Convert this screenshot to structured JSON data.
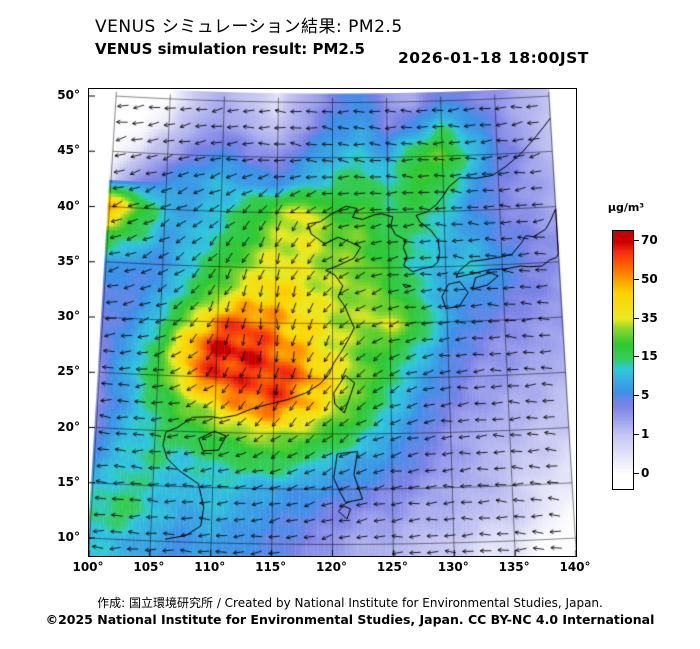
{
  "header": {
    "title_ja": "VENUS シミュレーション結果: PM2.5",
    "title_en": "VENUS simulation result: PM2.5",
    "datetime": "2026-01-18 18:00JST"
  },
  "footer": {
    "credit": "作成:  国立環境研究所 / Created by National Institute for Environmental Studies, Japan.",
    "license": "©2025 National Institute for Environmental Studies, Japan. CC BY-NC 4.0 International"
  },
  "chart_data": {
    "type": "heatmap",
    "title": "VENUS simulation result: PM2.5",
    "variable": "PM2.5",
    "units": "µg/m³",
    "datetime": "2026-01-18 18:00JST",
    "lon_range": [
      100,
      140
    ],
    "lat_range": [
      10,
      50
    ],
    "lon_ticks": [
      "100°",
      "105°",
      "110°",
      "115°",
      "120°",
      "125°",
      "130°",
      "135°",
      "140°"
    ],
    "lat_ticks": [
      "50°",
      "45°",
      "40°",
      "35°",
      "30°",
      "25°",
      "20°",
      "15°",
      "10°"
    ],
    "colorbar": {
      "label": "µg/m³",
      "tick_values": [
        70,
        50,
        35,
        15,
        5,
        1,
        0
      ]
    },
    "color_stops": [
      [
        0,
        "#ffffff"
      ],
      [
        1,
        "#c6c6f2"
      ],
      [
        4,
        "#7b82e6"
      ],
      [
        6,
        "#3f8fe8"
      ],
      [
        12,
        "#2fc8dc"
      ],
      [
        15,
        "#35cc5a"
      ],
      [
        22,
        "#2fc832"
      ],
      [
        30,
        "#8cd62c"
      ],
      [
        35,
        "#e8ea24"
      ],
      [
        45,
        "#ffd400"
      ],
      [
        50,
        "#ffa000"
      ],
      [
        58,
        "#ff5f00"
      ],
      [
        65,
        "#f32c10"
      ],
      [
        70,
        "#c80000"
      ]
    ],
    "grid": {
      "lon_start": 100,
      "lon_step": 2.5,
      "lat_start": 50,
      "lat_step": -2.5,
      "values": [
        [
          null,
          null,
          null,
          1,
          2,
          1,
          0.5,
          2,
          4,
          6,
          3,
          2,
          5,
          4,
          3,
          2,
          1
        ],
        [
          null,
          null,
          0.5,
          2,
          3,
          2,
          1,
          3,
          6,
          8,
          4,
          6,
          14,
          8,
          4,
          2,
          1
        ],
        [
          null,
          0.5,
          2,
          4,
          6,
          4,
          3,
          6,
          10,
          12,
          8,
          20,
          26,
          12,
          5,
          3,
          1
        ],
        [
          0.5,
          3,
          6,
          8,
          10,
          8,
          6,
          10,
          14,
          18,
          12,
          22,
          18,
          8,
          4,
          3,
          2
        ],
        [
          55,
          25,
          10,
          8,
          12,
          18,
          28,
          38,
          22,
          24,
          16,
          18,
          12,
          6,
          4,
          3,
          2
        ],
        [
          20,
          15,
          8,
          10,
          14,
          22,
          32,
          36,
          28,
          26,
          18,
          14,
          10,
          8,
          5,
          4,
          3
        ],
        [
          8,
          6,
          6,
          12,
          20,
          30,
          38,
          34,
          30,
          28,
          20,
          12,
          10,
          12,
          6,
          4,
          3
        ],
        [
          5,
          5,
          8,
          16,
          28,
          40,
          45,
          38,
          32,
          30,
          24,
          14,
          8,
          6,
          5,
          4,
          3
        ],
        [
          4,
          6,
          12,
          30,
          55,
          60,
          50,
          42,
          34,
          30,
          36,
          20,
          8,
          5,
          4,
          3,
          3
        ],
        [
          4,
          8,
          18,
          50,
          68,
          68,
          58,
          45,
          36,
          26,
          20,
          12,
          6,
          4,
          3,
          3,
          2
        ],
        [
          3,
          10,
          20,
          45,
          65,
          62,
          66,
          55,
          40,
          28,
          16,
          8,
          5,
          3,
          3,
          2,
          2
        ],
        [
          3,
          8,
          16,
          28,
          40,
          55,
          60,
          48,
          35,
          22,
          12,
          6,
          4,
          3,
          2,
          2,
          1
        ],
        [
          4,
          10,
          14,
          18,
          24,
          30,
          34,
          28,
          22,
          14,
          8,
          5,
          3,
          2,
          2,
          1,
          1
        ],
        [
          6,
          12,
          14,
          12,
          14,
          16,
          18,
          14,
          10,
          8,
          6,
          4,
          3,
          2,
          1,
          1,
          0.5
        ],
        [
          10,
          14,
          12,
          10,
          12,
          10,
          8,
          7,
          6,
          5,
          4,
          3,
          2,
          2,
          1,
          0.5,
          0.5
        ],
        [
          14,
          16,
          12,
          8,
          10,
          8,
          6,
          5,
          4,
          3,
          3,
          2,
          2,
          1,
          1,
          0.5,
          null
        ],
        [
          12,
          10,
          8,
          6,
          8,
          6,
          5,
          4,
          3,
          2,
          2,
          1,
          1,
          0.5,
          0.5,
          null,
          null
        ]
      ]
    },
    "wind": {
      "lon_start": 100,
      "lon_step": 5,
      "lat_start": 50,
      "lat_step": -5,
      "angles_deg": [
        [
          185,
          185,
          188,
          182,
          178,
          180,
          183,
          186,
          188
        ],
        [
          192,
          196,
          188,
          175,
          168,
          172,
          182,
          190,
          194
        ],
        [
          198,
          205,
          215,
          240,
          200,
          185,
          175,
          182,
          188
        ],
        [
          190,
          210,
          235,
          255,
          215,
          190,
          180,
          175,
          182
        ],
        [
          185,
          200,
          250,
          270,
          230,
          200,
          185,
          178,
          180
        ],
        [
          175,
          190,
          230,
          260,
          240,
          210,
          190,
          182,
          178
        ],
        [
          172,
          180,
          200,
          220,
          215,
          200,
          188,
          180,
          175
        ],
        [
          175,
          178,
          185,
          195,
          200,
          192,
          185,
          178,
          172
        ],
        [
          178,
          180,
          182,
          188,
          190,
          186,
          182,
          178,
          175
        ]
      ]
    }
  }
}
